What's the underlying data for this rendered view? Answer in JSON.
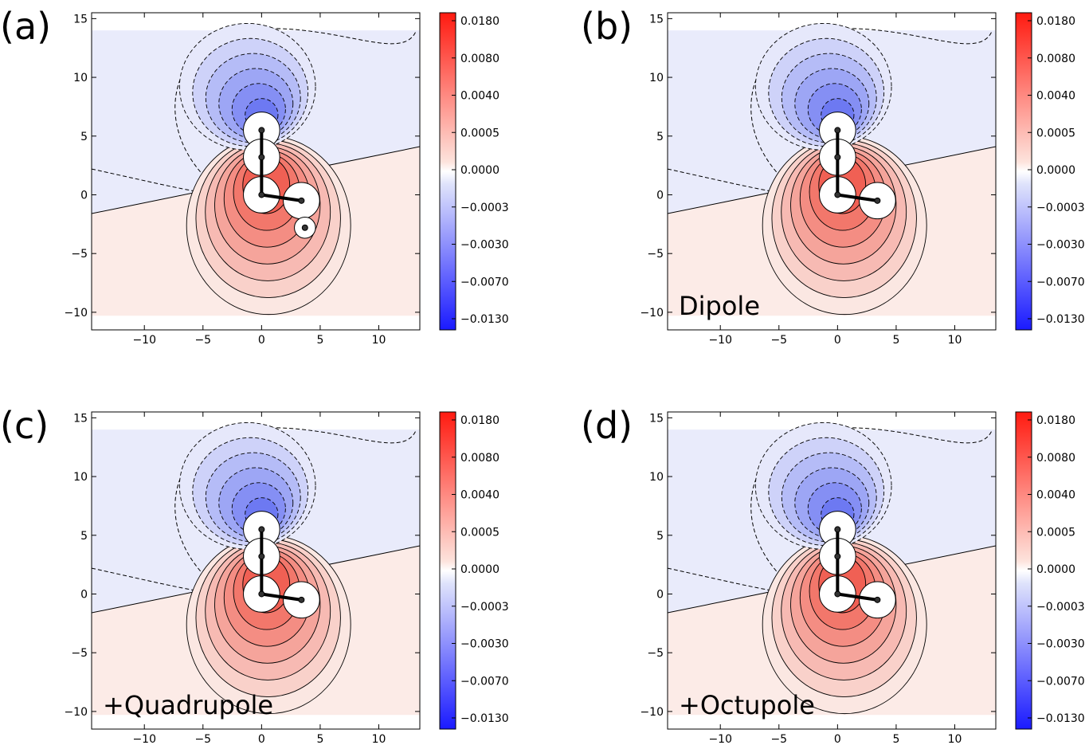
{
  "colorbar": {
    "ticks": [
      "0.0180",
      "0.0080",
      "0.0040",
      "0.0005",
      "0.0000",
      "-0.0003",
      "-0.0030",
      "-0.0070",
      "-0.0130"
    ],
    "top_color": "#ff1a10",
    "bottom_color": "#1a1aff",
    "mid_color": "#ffffff"
  },
  "chart_data": [
    {
      "type": "contour",
      "label": "(a)",
      "annotation": "",
      "xticks": [
        -10,
        -5,
        0,
        5,
        10
      ],
      "yticks": [
        -10,
        -5,
        0,
        5,
        10,
        15
      ],
      "xlim": [
        -14.5,
        13.5
      ],
      "ylim": [
        -11.5,
        15.5
      ],
      "atoms": [
        [
          0,
          5.5
        ],
        [
          0,
          3.2
        ],
        [
          0,
          0
        ],
        [
          3.4,
          -0.5
        ],
        [
          3.7,
          -2.8
        ]
      ],
      "bonds": [
        [
          [
            0,
            5.5
          ],
          [
            0,
            0
          ]
        ],
        [
          [
            0,
            0
          ],
          [
            3.4,
            -0.5
          ]
        ]
      ]
    },
    {
      "type": "contour",
      "label": "(b)",
      "annotation": "Dipole",
      "xticks": [
        -10,
        -5,
        0,
        5,
        10
      ],
      "yticks": [
        -10,
        -5,
        0,
        5,
        10,
        15
      ],
      "xlim": [
        -14.5,
        13.5
      ],
      "ylim": [
        -11.5,
        15.5
      ],
      "atoms": [
        [
          0,
          5.5
        ],
        [
          0,
          3.2
        ],
        [
          0,
          0
        ],
        [
          3.4,
          -0.5
        ]
      ],
      "bonds": [
        [
          [
            0,
            5.5
          ],
          [
            0,
            0
          ]
        ],
        [
          [
            0,
            0
          ],
          [
            3.4,
            -0.5
          ]
        ]
      ]
    },
    {
      "type": "contour",
      "label": "(c)",
      "annotation": "+Quadrupole",
      "xticks": [
        -10,
        -5,
        0,
        5,
        10
      ],
      "yticks": [
        -10,
        -5,
        0,
        5,
        10,
        15
      ],
      "xlim": [
        -14.5,
        13.5
      ],
      "ylim": [
        -11.5,
        15.5
      ],
      "atoms": [
        [
          0,
          5.5
        ],
        [
          0,
          3.2
        ],
        [
          0,
          0
        ],
        [
          3.4,
          -0.5
        ]
      ],
      "bonds": [
        [
          [
            0,
            5.5
          ],
          [
            0,
            0
          ]
        ],
        [
          [
            0,
            0
          ],
          [
            3.4,
            -0.5
          ]
        ]
      ]
    },
    {
      "type": "contour",
      "label": "(d)",
      "annotation": "+Octupole",
      "xticks": [
        -10,
        -5,
        0,
        5,
        10
      ],
      "yticks": [
        -10,
        -5,
        0,
        5,
        10,
        15
      ],
      "xlim": [
        -14.5,
        13.5
      ],
      "ylim": [
        -11.5,
        15.5
      ],
      "atoms": [
        [
          0,
          5.5
        ],
        [
          0,
          3.2
        ],
        [
          0,
          0
        ],
        [
          3.4,
          -0.5
        ]
      ],
      "bonds": [
        [
          [
            0,
            5.5
          ],
          [
            0,
            0
          ]
        ],
        [
          [
            0,
            0
          ],
          [
            3.4,
            -0.5
          ]
        ]
      ]
    }
  ]
}
